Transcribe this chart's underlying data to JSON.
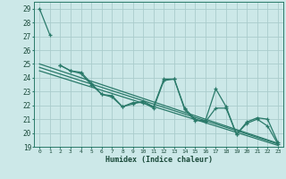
{
  "background_color": "#cce8e8",
  "grid_color": "#aacccc",
  "line_color": "#2a7a6a",
  "xlabel": "Humidex (Indice chaleur)",
  "xlim": [
    -0.5,
    23.5
  ],
  "ylim": [
    19,
    29.5
  ],
  "yticks": [
    19,
    20,
    21,
    22,
    23,
    24,
    25,
    26,
    27,
    28,
    29
  ],
  "xticks": [
    0,
    1,
    2,
    3,
    4,
    5,
    6,
    7,
    8,
    9,
    10,
    11,
    12,
    13,
    14,
    15,
    16,
    17,
    18,
    19,
    20,
    21,
    22,
    23
  ],
  "series": [
    {
      "x": [
        0,
        1
      ],
      "y": [
        29.0,
        27.1
      ],
      "marker": "+"
    },
    {
      "x": [
        2,
        3,
        4,
        5,
        6,
        7,
        8,
        9,
        10,
        11,
        12,
        13,
        14,
        15,
        16,
        17,
        18,
        19,
        20,
        21,
        22,
        23
      ],
      "y": [
        24.9,
        24.5,
        24.4,
        23.6,
        22.8,
        22.7,
        21.9,
        22.1,
        22.3,
        21.9,
        23.9,
        23.9,
        21.7,
        20.9,
        20.9,
        23.2,
        21.9,
        19.9,
        20.8,
        21.1,
        21.0,
        19.3
      ],
      "marker": "+"
    },
    {
      "x": [
        2,
        3,
        4,
        5,
        6,
        7,
        8,
        9,
        10,
        11,
        12,
        13,
        14,
        15,
        16,
        17,
        18,
        19,
        20,
        21,
        22,
        23
      ],
      "y": [
        24.9,
        24.5,
        24.3,
        23.5,
        22.8,
        22.6,
        21.9,
        22.2,
        22.2,
        21.8,
        23.8,
        23.9,
        21.8,
        21.0,
        20.8,
        21.8,
        21.8,
        19.9,
        20.7,
        21.0,
        20.5,
        19.2
      ],
      "marker": "+"
    },
    {
      "x": [
        0,
        23
      ],
      "y": [
        25.0,
        19.25
      ],
      "marker": null
    },
    {
      "x": [
        0,
        23
      ],
      "y": [
        24.75,
        19.2
      ],
      "marker": null
    },
    {
      "x": [
        0,
        23
      ],
      "y": [
        24.5,
        19.1
      ],
      "marker": null
    }
  ]
}
